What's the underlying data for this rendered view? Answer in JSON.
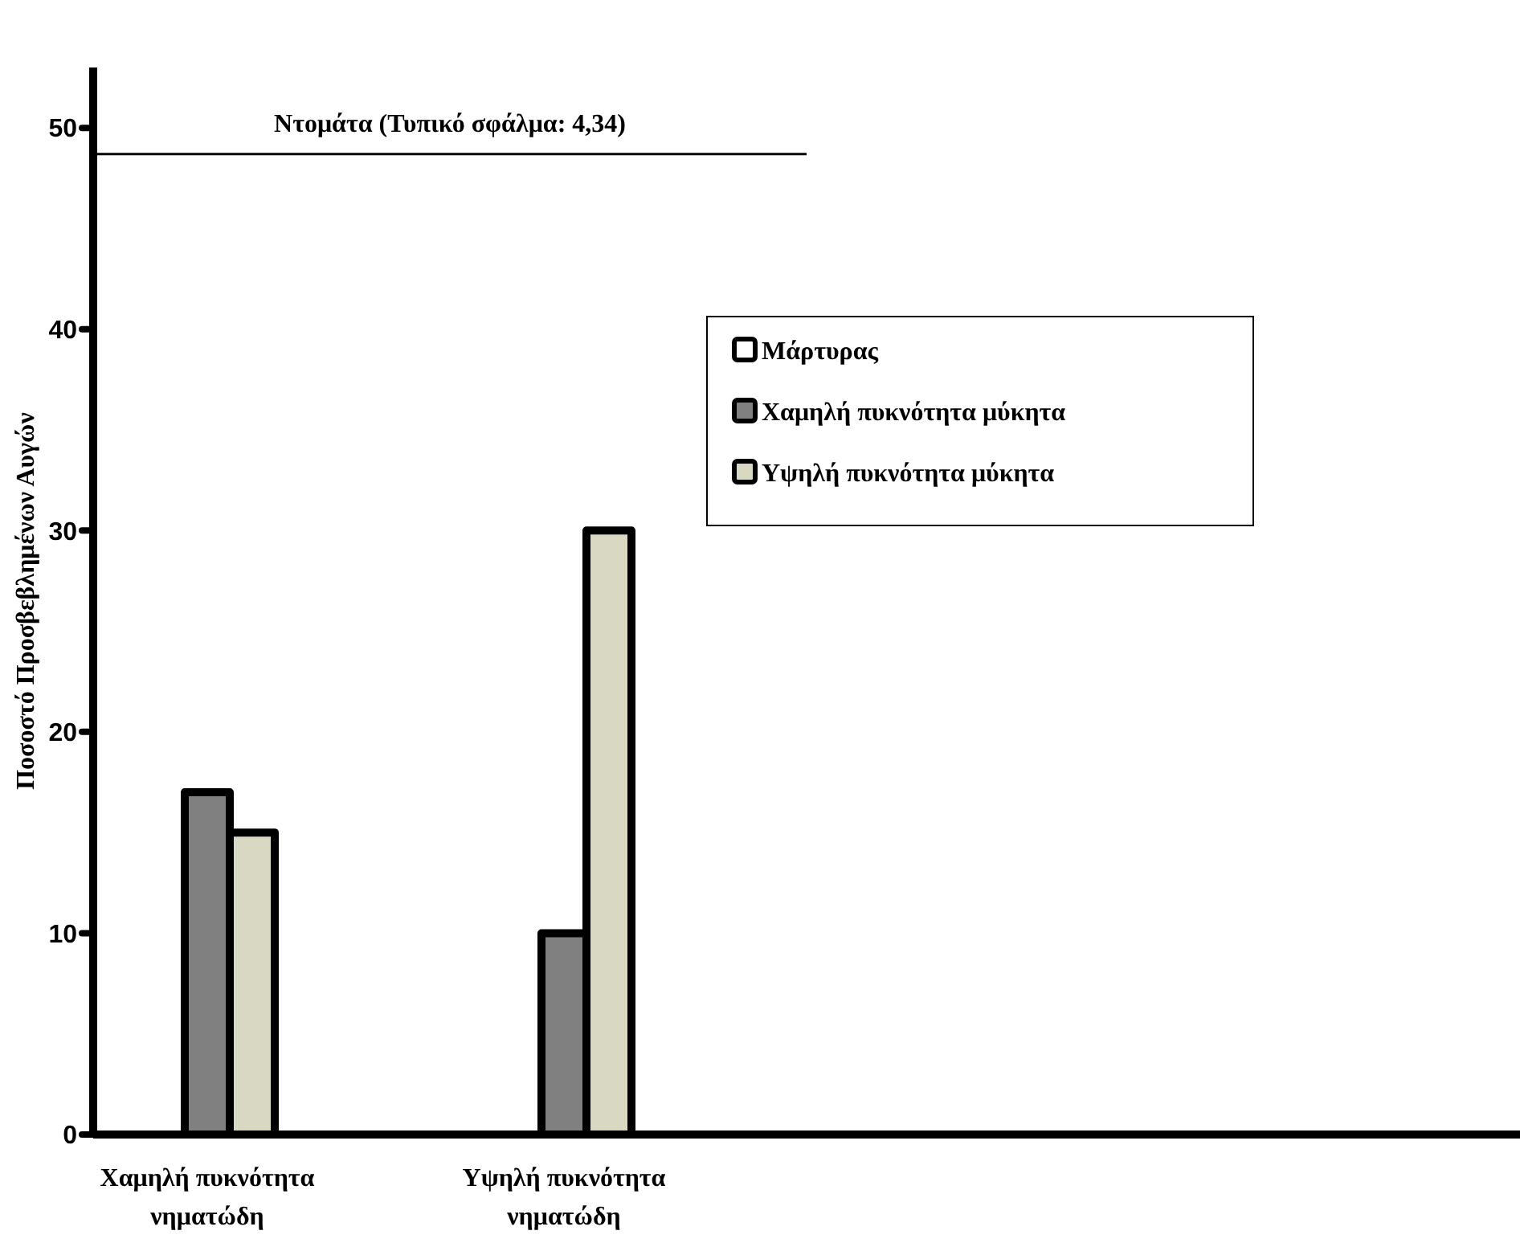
{
  "chart_data": {
    "type": "bar",
    "ylabel": "Ποσοστό Προσβεβλημένων Αυγών",
    "categories": [
      "Χαμηλή πυκνότητα νηματώδη",
      "Υψηλή πυκνότητα νηματώδη",
      null,
      null
    ],
    "series": [
      {
        "name": "Μάρτυρας",
        "color": "#ffffff",
        "values": [
          0,
          0,
          null,
          null
        ]
      },
      {
        "name": "Χαμηλή πυκνότητα μύκητα",
        "color": "#808080",
        "values": [
          17,
          10,
          null,
          null
        ]
      },
      {
        "name": "Υψηλή πυκνότητα μύκητα",
        "color": "#d9d9c3",
        "values": [
          15,
          30,
          null,
          null
        ]
      }
    ],
    "ylim": [
      0,
      53
    ],
    "yticks": [
      0,
      10,
      20,
      30,
      40,
      50
    ],
    "grid": false,
    "legend": "right",
    "annotations": [
      "Ντομάτα (Τυπικό σφάλμα: 4,34)"
    ],
    "ref_lines": [
      {
        "axis": "y",
        "value": 48.7
      }
    ]
  }
}
